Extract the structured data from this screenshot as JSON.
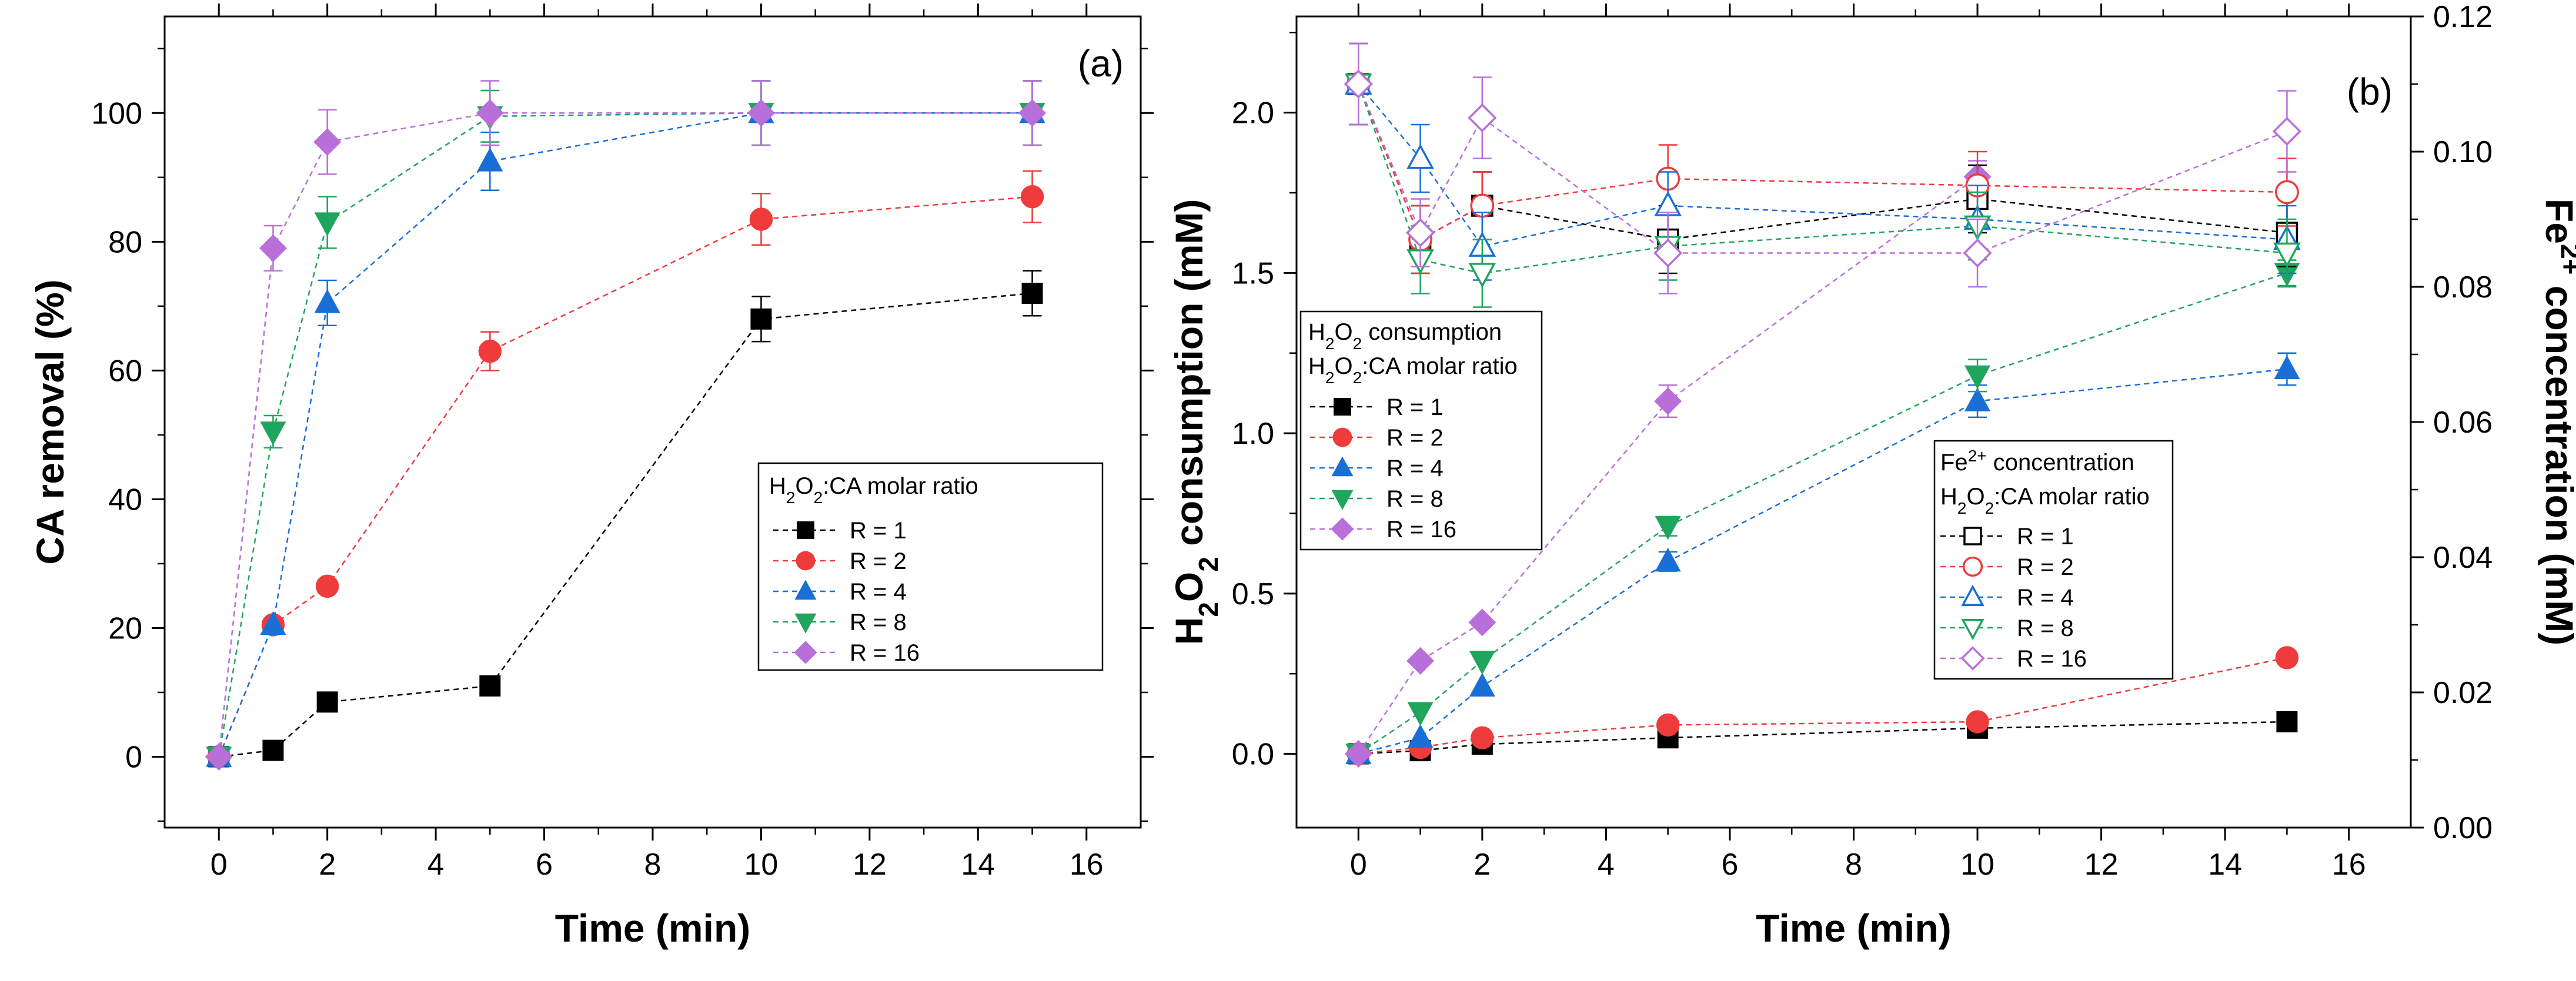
{
  "figure": {
    "panels": [
      "(a)",
      "(b)"
    ]
  },
  "chart_data": [
    {
      "type": "line",
      "panel_label": "(a)",
      "title": "",
      "xlabel": "Time (min)",
      "ylabel": "CA removal (%)",
      "xlim": [
        -1,
        17
      ],
      "ylim": [
        -11,
        115
      ],
      "xticks": [
        0,
        2,
        4,
        6,
        8,
        10,
        12,
        14,
        16
      ],
      "yticks": [
        0,
        20,
        40,
        60,
        80,
        100
      ],
      "grid": false,
      "legend": {
        "title_parts": [
          "H",
          "2",
          "O",
          "2",
          ":CA molar ratio"
        ],
        "placement": "center-right"
      },
      "x": [
        0,
        1,
        2,
        5,
        10,
        15
      ],
      "series": [
        {
          "name": "R = 1",
          "color": "#000000",
          "marker": "square",
          "filled": true,
          "values": [
            0,
            1,
            8.5,
            11,
            68,
            72
          ],
          "errors": [
            0,
            0,
            0,
            0,
            3.5,
            3.5
          ]
        },
        {
          "name": "R = 2",
          "color": "#ee3b3b",
          "marker": "circle",
          "filled": true,
          "values": [
            0,
            20.5,
            26.5,
            63,
            83.5,
            87
          ],
          "errors": [
            0,
            0,
            0,
            3,
            4,
            4
          ]
        },
        {
          "name": "R = 4",
          "color": "#1a6fd6",
          "marker": "triangle-up",
          "filled": true,
          "values": [
            0,
            20.5,
            70.5,
            92.5,
            100,
            100
          ],
          "errors": [
            0,
            0,
            3.5,
            4.5,
            5,
            5
          ]
        },
        {
          "name": "R = 8",
          "color": "#1fa55c",
          "marker": "triangle-down",
          "filled": true,
          "values": [
            0,
            50.5,
            83,
            99.5,
            100,
            100
          ],
          "errors": [
            0,
            2.5,
            4,
            4,
            5,
            5
          ]
        },
        {
          "name": "R = 16",
          "color": "#b96fd9",
          "marker": "diamond",
          "filled": true,
          "values": [
            0,
            79,
            95.5,
            100,
            100,
            100
          ],
          "errors": [
            0,
            3.5,
            5,
            5,
            5,
            5
          ]
        }
      ]
    },
    {
      "type": "line",
      "panel_label": "(b)",
      "title": "",
      "xlabel": "Time (min)",
      "ylabel_parts": [
        "H",
        "2",
        "O",
        "2",
        " consumption (mM)"
      ],
      "y2label_parts": [
        "Fe",
        "2+",
        " concentration (mM)"
      ],
      "xlim": [
        -1,
        17
      ],
      "ylim": [
        -0.23,
        2.3
      ],
      "y2lim": [
        0,
        0.12
      ],
      "xticks": [
        0,
        2,
        4,
        6,
        8,
        10,
        12,
        14,
        16
      ],
      "yticks": [
        "0.0",
        "0.5",
        "1.0",
        "1.5",
        "2.0"
      ],
      "y2ticks": [
        "0.00",
        "0.02",
        "0.04",
        "0.06",
        "0.08",
        "0.10",
        "0.12"
      ],
      "grid": false,
      "legend_left": {
        "heading_parts": [
          "H",
          "2",
          "O",
          "2",
          " consumption"
        ],
        "title_parts": [
          "H",
          "2",
          "O",
          "2",
          ":CA molar ratio"
        ],
        "placement": "center-left"
      },
      "legend_right": {
        "heading_parts": [
          "Fe",
          "2+",
          " concentration"
        ],
        "title_parts": [
          "H",
          "2",
          "O",
          "2",
          ":CA molar ratio"
        ],
        "placement": "center-right"
      },
      "x": [
        0,
        1,
        2,
        5,
        10,
        15
      ],
      "series": [
        {
          "name": "R = 1",
          "axis": "left",
          "color": "#000000",
          "marker": "square",
          "filled": true,
          "values": [
            0,
            0.01,
            0.03,
            0.05,
            0.08,
            0.1
          ],
          "errors": [
            0,
            0,
            0,
            0,
            0,
            0
          ]
        },
        {
          "name": "R = 2",
          "axis": "left",
          "color": "#ee3b3b",
          "marker": "circle",
          "filled": true,
          "values": [
            0,
            0.02,
            0.05,
            0.09,
            0.1,
            0.3
          ],
          "errors": [
            0,
            0,
            0,
            0,
            0,
            0
          ]
        },
        {
          "name": "R = 4",
          "axis": "left",
          "color": "#1a6fd6",
          "marker": "triangle-up",
          "filled": true,
          "values": [
            0,
            0.05,
            0.21,
            0.6,
            1.1,
            1.2
          ],
          "errors": [
            0,
            0,
            0,
            0.03,
            0.05,
            0.05
          ]
        },
        {
          "name": "R = 8",
          "axis": "left",
          "color": "#1fa55c",
          "marker": "triangle-down",
          "filled": true,
          "values": [
            0,
            0.13,
            0.29,
            0.71,
            1.18,
            1.5
          ],
          "errors": [
            0,
            0,
            0,
            0.03,
            0.05,
            0.04
          ]
        },
        {
          "name": "R = 16",
          "axis": "left",
          "color": "#b96fd9",
          "marker": "diamond",
          "filled": true,
          "values": [
            0,
            0.29,
            0.41,
            1.1,
            1.8,
            null
          ],
          "errors": [
            0,
            0,
            0,
            0.05,
            0.05,
            0
          ]
        },
        {
          "name": "R = 1",
          "axis": "right",
          "color": "#000000",
          "marker": "square",
          "filled": false,
          "values": [
            0.11,
            0.087,
            0.092,
            0.087,
            0.093,
            0.088
          ],
          "errors": [
            0.006,
            0.005,
            0.005,
            0.005,
            0.005,
            0.005
          ]
        },
        {
          "name": "R = 2",
          "axis": "right",
          "color": "#ee3b3b",
          "marker": "circle",
          "filled": false,
          "values": [
            0.11,
            0.087,
            0.092,
            0.096,
            0.095,
            0.094
          ],
          "errors": [
            0.006,
            0.005,
            0.005,
            0.005,
            0.005,
            0.005
          ]
        },
        {
          "name": "R = 4",
          "axis": "right",
          "color": "#1a6fd6",
          "marker": "triangle-up",
          "filled": false,
          "values": [
            0.11,
            0.099,
            0.086,
            0.092,
            0.09,
            0.087
          ],
          "errors": [
            0.006,
            0.005,
            0.005,
            0.005,
            0.005,
            0.005
          ]
        },
        {
          "name": "R = 8",
          "axis": "right",
          "color": "#1fa55c",
          "marker": "triangle-down",
          "filled": false,
          "values": [
            0.11,
            0.084,
            0.082,
            0.086,
            0.089,
            0.085
          ],
          "errors": [
            0.006,
            0.005,
            0.005,
            0.005,
            0.005,
            0.005
          ]
        },
        {
          "name": "R = 16",
          "axis": "right",
          "color": "#b96fd9",
          "marker": "diamond",
          "filled": false,
          "values": [
            0.11,
            0.088,
            0.105,
            0.085,
            0.085,
            0.103
          ],
          "errors": [
            0.006,
            0.005,
            0.006,
            0.006,
            0.005,
            0.006
          ]
        }
      ]
    }
  ]
}
